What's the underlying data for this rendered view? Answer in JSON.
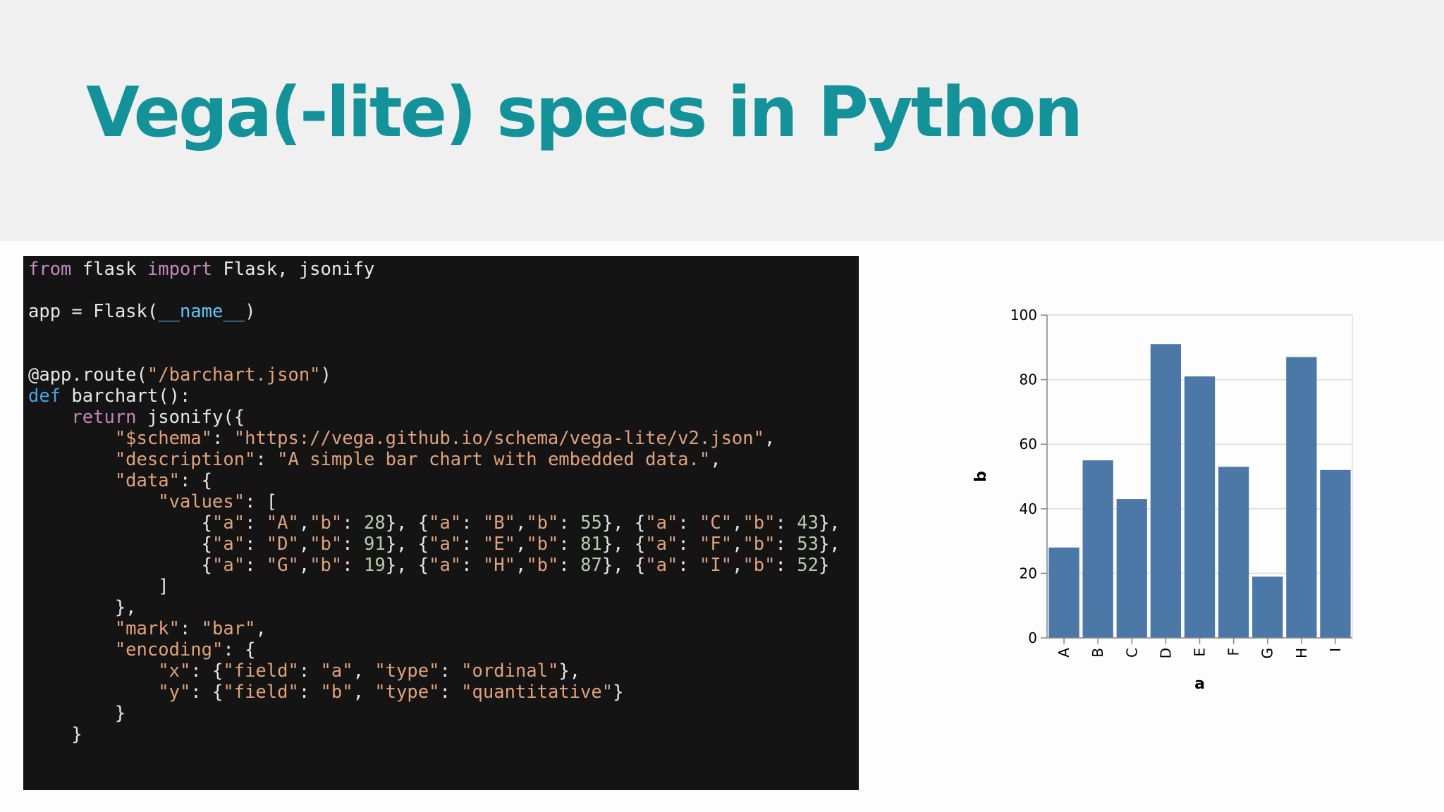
{
  "slide": {
    "title": "Vega(-lite) specs in Python"
  },
  "code": {
    "lines": [
      [
        {
          "t": "kw",
          "v": "from"
        },
        {
          "t": "plain",
          "v": " flask "
        },
        {
          "t": "kw",
          "v": "import"
        },
        {
          "t": "plain",
          "v": " Flask, jsonify"
        }
      ],
      [],
      [
        {
          "t": "plain",
          "v": "app = Flask("
        },
        {
          "t": "dunder",
          "v": "__name__"
        },
        {
          "t": "plain",
          "v": ")"
        }
      ],
      [],
      [],
      [
        {
          "t": "plain",
          "v": "@app.route("
        },
        {
          "t": "str",
          "v": "\"/barchart.json\""
        },
        {
          "t": "plain",
          "v": ")"
        }
      ],
      [
        {
          "t": "def",
          "v": "def"
        },
        {
          "t": "plain",
          "v": " barchart():"
        }
      ],
      [
        {
          "t": "plain",
          "v": "    "
        },
        {
          "t": "kw",
          "v": "return"
        },
        {
          "t": "plain",
          "v": " jsonify({"
        }
      ],
      [
        {
          "t": "plain",
          "v": "        "
        },
        {
          "t": "str",
          "v": "\"$schema\""
        },
        {
          "t": "plain",
          "v": ": "
        },
        {
          "t": "str",
          "v": "\"https://vega.github.io/schema/vega-lite/v2.json\""
        },
        {
          "t": "plain",
          "v": ","
        }
      ],
      [
        {
          "t": "plain",
          "v": "        "
        },
        {
          "t": "str",
          "v": "\"description\""
        },
        {
          "t": "plain",
          "v": ": "
        },
        {
          "t": "str",
          "v": "\"A simple bar chart with embedded data.\""
        },
        {
          "t": "plain",
          "v": ","
        }
      ],
      [
        {
          "t": "plain",
          "v": "        "
        },
        {
          "t": "str",
          "v": "\"data\""
        },
        {
          "t": "plain",
          "v": ": {"
        }
      ],
      [
        {
          "t": "plain",
          "v": "            "
        },
        {
          "t": "str",
          "v": "\"values\""
        },
        {
          "t": "plain",
          "v": ": ["
        }
      ],
      [
        {
          "t": "plain",
          "v": "                {"
        },
        {
          "t": "str",
          "v": "\"a\""
        },
        {
          "t": "plain",
          "v": ": "
        },
        {
          "t": "str",
          "v": "\"A\""
        },
        {
          "t": "plain",
          "v": ","
        },
        {
          "t": "str",
          "v": "\"b\""
        },
        {
          "t": "plain",
          "v": ": "
        },
        {
          "t": "num",
          "v": "28"
        },
        {
          "t": "plain",
          "v": "}, {"
        },
        {
          "t": "str",
          "v": "\"a\""
        },
        {
          "t": "plain",
          "v": ": "
        },
        {
          "t": "str",
          "v": "\"B\""
        },
        {
          "t": "plain",
          "v": ","
        },
        {
          "t": "str",
          "v": "\"b\""
        },
        {
          "t": "plain",
          "v": ": "
        },
        {
          "t": "num",
          "v": "55"
        },
        {
          "t": "plain",
          "v": "}, {"
        },
        {
          "t": "str",
          "v": "\"a\""
        },
        {
          "t": "plain",
          "v": ": "
        },
        {
          "t": "str",
          "v": "\"C\""
        },
        {
          "t": "plain",
          "v": ","
        },
        {
          "t": "str",
          "v": "\"b\""
        },
        {
          "t": "plain",
          "v": ": "
        },
        {
          "t": "num",
          "v": "43"
        },
        {
          "t": "plain",
          "v": "},"
        }
      ],
      [
        {
          "t": "plain",
          "v": "                {"
        },
        {
          "t": "str",
          "v": "\"a\""
        },
        {
          "t": "plain",
          "v": ": "
        },
        {
          "t": "str",
          "v": "\"D\""
        },
        {
          "t": "plain",
          "v": ","
        },
        {
          "t": "str",
          "v": "\"b\""
        },
        {
          "t": "plain",
          "v": ": "
        },
        {
          "t": "num",
          "v": "91"
        },
        {
          "t": "plain",
          "v": "}, {"
        },
        {
          "t": "str",
          "v": "\"a\""
        },
        {
          "t": "plain",
          "v": ": "
        },
        {
          "t": "str",
          "v": "\"E\""
        },
        {
          "t": "plain",
          "v": ","
        },
        {
          "t": "str",
          "v": "\"b\""
        },
        {
          "t": "plain",
          "v": ": "
        },
        {
          "t": "num",
          "v": "81"
        },
        {
          "t": "plain",
          "v": "}, {"
        },
        {
          "t": "str",
          "v": "\"a\""
        },
        {
          "t": "plain",
          "v": ": "
        },
        {
          "t": "str",
          "v": "\"F\""
        },
        {
          "t": "plain",
          "v": ","
        },
        {
          "t": "str",
          "v": "\"b\""
        },
        {
          "t": "plain",
          "v": ": "
        },
        {
          "t": "num",
          "v": "53"
        },
        {
          "t": "plain",
          "v": "},"
        }
      ],
      [
        {
          "t": "plain",
          "v": "                {"
        },
        {
          "t": "str",
          "v": "\"a\""
        },
        {
          "t": "plain",
          "v": ": "
        },
        {
          "t": "str",
          "v": "\"G\""
        },
        {
          "t": "plain",
          "v": ","
        },
        {
          "t": "str",
          "v": "\"b\""
        },
        {
          "t": "plain",
          "v": ": "
        },
        {
          "t": "num",
          "v": "19"
        },
        {
          "t": "plain",
          "v": "}, {"
        },
        {
          "t": "str",
          "v": "\"a\""
        },
        {
          "t": "plain",
          "v": ": "
        },
        {
          "t": "str",
          "v": "\"H\""
        },
        {
          "t": "plain",
          "v": ","
        },
        {
          "t": "str",
          "v": "\"b\""
        },
        {
          "t": "plain",
          "v": ": "
        },
        {
          "t": "num",
          "v": "87"
        },
        {
          "t": "plain",
          "v": "}, {"
        },
        {
          "t": "str",
          "v": "\"a\""
        },
        {
          "t": "plain",
          "v": ": "
        },
        {
          "t": "str",
          "v": "\"I\""
        },
        {
          "t": "plain",
          "v": ","
        },
        {
          "t": "str",
          "v": "\"b\""
        },
        {
          "t": "plain",
          "v": ": "
        },
        {
          "t": "num",
          "v": "52"
        },
        {
          "t": "plain",
          "v": "}"
        }
      ],
      [
        {
          "t": "plain",
          "v": "            ]"
        }
      ],
      [
        {
          "t": "plain",
          "v": "        },"
        }
      ],
      [
        {
          "t": "plain",
          "v": "        "
        },
        {
          "t": "str",
          "v": "\"mark\""
        },
        {
          "t": "plain",
          "v": ": "
        },
        {
          "t": "str",
          "v": "\"bar\""
        },
        {
          "t": "plain",
          "v": ","
        }
      ],
      [
        {
          "t": "plain",
          "v": "        "
        },
        {
          "t": "str",
          "v": "\"encoding\""
        },
        {
          "t": "plain",
          "v": ": {"
        }
      ],
      [
        {
          "t": "plain",
          "v": "            "
        },
        {
          "t": "str",
          "v": "\"x\""
        },
        {
          "t": "plain",
          "v": ": {"
        },
        {
          "t": "str",
          "v": "\"field\""
        },
        {
          "t": "plain",
          "v": ": "
        },
        {
          "t": "str",
          "v": "\"a\""
        },
        {
          "t": "plain",
          "v": ", "
        },
        {
          "t": "str",
          "v": "\"type\""
        },
        {
          "t": "plain",
          "v": ": "
        },
        {
          "t": "str",
          "v": "\"ordinal\""
        },
        {
          "t": "plain",
          "v": "},"
        }
      ],
      [
        {
          "t": "plain",
          "v": "            "
        },
        {
          "t": "str",
          "v": "\"y\""
        },
        {
          "t": "plain",
          "v": ": {"
        },
        {
          "t": "str",
          "v": "\"field\""
        },
        {
          "t": "plain",
          "v": ": "
        },
        {
          "t": "str",
          "v": "\"b\""
        },
        {
          "t": "plain",
          "v": ", "
        },
        {
          "t": "str",
          "v": "\"type\""
        },
        {
          "t": "plain",
          "v": ": "
        },
        {
          "t": "str",
          "v": "\"quantitative\""
        },
        {
          "t": "plain",
          "v": "}"
        }
      ],
      [
        {
          "t": "plain",
          "v": "        }"
        }
      ],
      [
        {
          "t": "plain",
          "v": "    }"
        }
      ]
    ]
  },
  "chart_data": {
    "type": "bar",
    "categories": [
      "A",
      "B",
      "C",
      "D",
      "E",
      "F",
      "G",
      "H",
      "I"
    ],
    "values": [
      28,
      55,
      43,
      91,
      81,
      53,
      19,
      87,
      52
    ],
    "title": "",
    "xlabel": "a",
    "ylabel": "b",
    "ylim": [
      0,
      100
    ],
    "yticks": [
      0,
      20,
      40,
      60,
      80,
      100
    ],
    "grid": true,
    "bar_color": "#4c78a8"
  },
  "colors": {
    "title": "#13929a",
    "code_background": "#141414",
    "keyword": "#c586c0",
    "string": "#e2a27a",
    "number": "#b5cea8"
  }
}
